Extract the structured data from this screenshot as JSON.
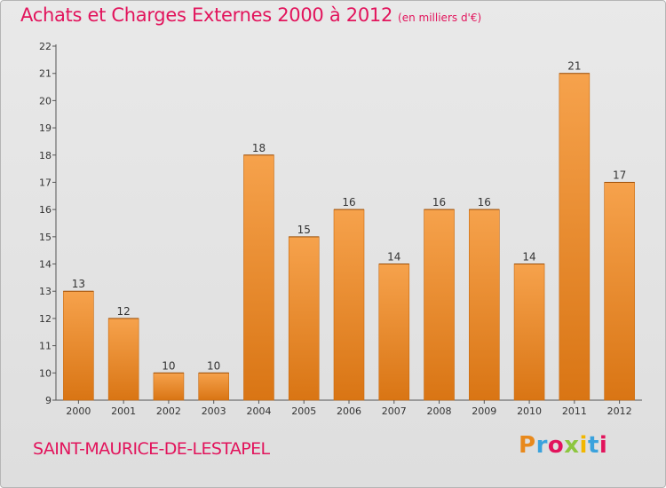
{
  "title": "Achats et Charges Externes 2000 à 2012",
  "subtitle": "(en milliers d'€)",
  "commune": "SAINT-MAURICE-DE-LESTAPEL",
  "logo": {
    "letters": [
      "P",
      "r",
      "o",
      "x",
      "i",
      "t",
      "i"
    ],
    "colors": [
      "#e8891c",
      "#3aa2dd",
      "#e2145c",
      "#8dc63f",
      "#f2b700",
      "#3aa2dd",
      "#e2145c"
    ]
  },
  "chart_data": {
    "type": "bar",
    "categories": [
      "2000",
      "2001",
      "2002",
      "2003",
      "2004",
      "2005",
      "2006",
      "2007",
      "2008",
      "2009",
      "2010",
      "2011",
      "2012"
    ],
    "values": [
      13,
      12,
      10,
      10,
      18,
      15,
      16,
      14,
      16,
      16,
      14,
      21,
      17
    ],
    "ylim": [
      9,
      22
    ],
    "yticks": [
      9,
      10,
      11,
      12,
      13,
      14,
      15,
      16,
      17,
      18,
      19,
      20,
      21,
      22
    ],
    "bar_color": "#f0922e",
    "grid": false
  }
}
